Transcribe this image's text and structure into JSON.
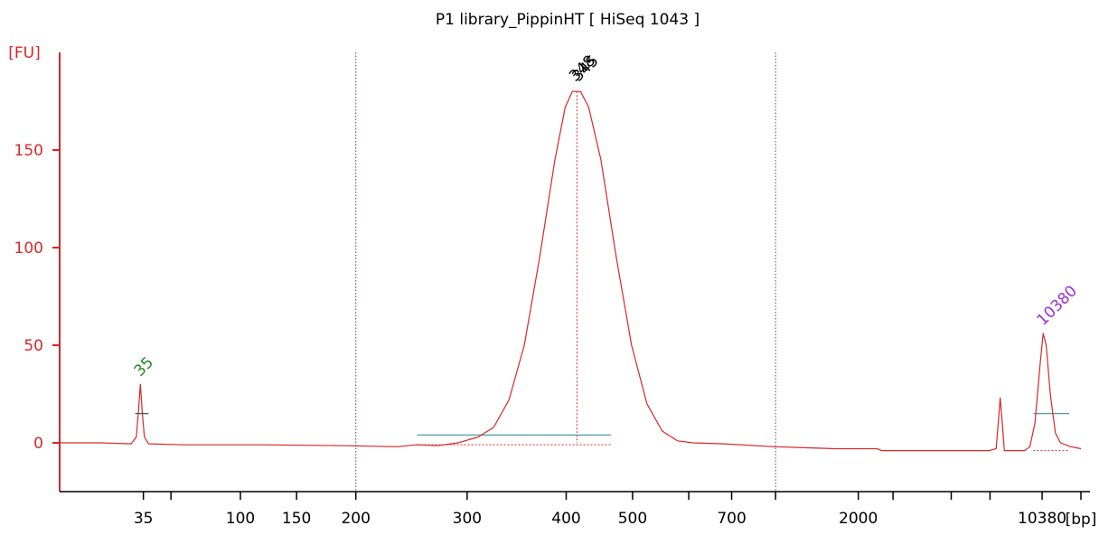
{
  "chart_data": {
    "type": "line",
    "title": "P1 library_PippinHT  [ HiSeq 1043 ]",
    "ylabel": "[FU]",
    "xlabel": "[bp]",
    "ylim": [
      -25,
      200
    ],
    "y_ticks": [
      0,
      50,
      100,
      150
    ],
    "x_tick_labels": [
      "35",
      "100",
      "150",
      "200",
      "300",
      "400",
      "500",
      "700",
      "2000",
      "10380"
    ],
    "series": [
      {
        "color": "#d62728",
        "points": [
          {
            "x": 0.0,
            "y": 0.0
          },
          {
            "x": 0.04,
            "y": 0.0
          },
          {
            "x": 0.07,
            "y": -0.5
          },
          {
            "x": 0.075,
            "y": 3
          },
          {
            "x": 0.077,
            "y": 15
          },
          {
            "x": 0.079,
            "y": 30
          },
          {
            "x": 0.081,
            "y": 15
          },
          {
            "x": 0.083,
            "y": 3
          },
          {
            "x": 0.087,
            "y": -0.5
          },
          {
            "x": 0.12,
            "y": -1
          },
          {
            "x": 0.2,
            "y": -1
          },
          {
            "x": 0.28,
            "y": -1.5
          },
          {
            "x": 0.33,
            "y": -2
          },
          {
            "x": 0.35,
            "y": -1
          },
          {
            "x": 0.37,
            "y": -1.5
          },
          {
            "x": 0.39,
            "y": 0
          },
          {
            "x": 0.41,
            "y": 3
          },
          {
            "x": 0.425,
            "y": 8
          },
          {
            "x": 0.44,
            "y": 22
          },
          {
            "x": 0.455,
            "y": 50
          },
          {
            "x": 0.47,
            "y": 95
          },
          {
            "x": 0.485,
            "y": 145
          },
          {
            "x": 0.495,
            "y": 172
          },
          {
            "x": 0.502,
            "y": 180
          },
          {
            "x": 0.51,
            "y": 180
          },
          {
            "x": 0.518,
            "y": 172
          },
          {
            "x": 0.53,
            "y": 145
          },
          {
            "x": 0.545,
            "y": 95
          },
          {
            "x": 0.56,
            "y": 50
          },
          {
            "x": 0.575,
            "y": 20
          },
          {
            "x": 0.59,
            "y": 6
          },
          {
            "x": 0.605,
            "y": 1
          },
          {
            "x": 0.62,
            "y": 0
          },
          {
            "x": 0.65,
            "y": -0.5
          },
          {
            "x": 0.7,
            "y": -2
          },
          {
            "x": 0.76,
            "y": -3
          },
          {
            "x": 0.8,
            "y": -3
          },
          {
            "x": 0.805,
            "y": -4
          },
          {
            "x": 0.88,
            "y": -4
          },
          {
            "x": 0.91,
            "y": -4
          },
          {
            "x": 0.917,
            "y": -3
          },
          {
            "x": 0.919,
            "y": 10
          },
          {
            "x": 0.921,
            "y": 23
          },
          {
            "x": 0.923,
            "y": 10
          },
          {
            "x": 0.925,
            "y": -4
          },
          {
            "x": 0.945,
            "y": -4
          },
          {
            "x": 0.95,
            "y": -2
          },
          {
            "x": 0.955,
            "y": 10
          },
          {
            "x": 0.96,
            "y": 40
          },
          {
            "x": 0.963,
            "y": 56
          },
          {
            "x": 0.966,
            "y": 50
          },
          {
            "x": 0.97,
            "y": 25
          },
          {
            "x": 0.975,
            "y": 5
          },
          {
            "x": 0.98,
            "y": 0
          },
          {
            "x": 0.99,
            "y": -2
          },
          {
            "x": 1.0,
            "y": -3
          }
        ]
      }
    ],
    "peak_labels": [
      {
        "text": "35",
        "color": "#1f8a1f",
        "x": 0.079,
        "y": 30
      },
      {
        "text": "348",
        "color": "#000000",
        "x": 0.505,
        "y": 181
      },
      {
        "text": "345",
        "color": "#000000",
        "x": 0.508,
        "y": 181
      },
      {
        "text": "10380",
        "color": "#9a30d8",
        "x": 0.963,
        "y": 56
      }
    ],
    "grid": false,
    "colors": {
      "axis": "#d62728",
      "trace": "#d62728",
      "marker_lower": "#1f8a1f",
      "marker_upper": "#9a30d8",
      "smear_line": "#4aa0a0",
      "region_line": "#4040c0"
    }
  }
}
